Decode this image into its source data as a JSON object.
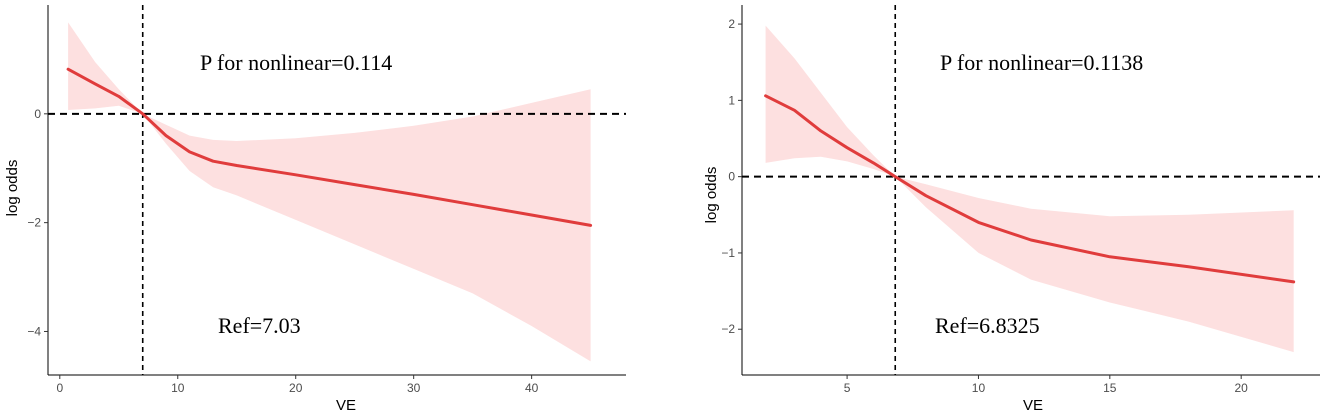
{
  "colors": {
    "curve": "#e03c3c",
    "band": "#fde0e0",
    "reference": "#000000"
  },
  "chart_data": [
    {
      "type": "line",
      "xlabel": "VE",
      "ylabel": "log odds",
      "xlim": [
        -1,
        48
      ],
      "ylim": [
        -4.8,
        2.0
      ],
      "x_ticks": [
        0,
        10,
        20,
        30,
        40
      ],
      "y_ticks": [
        0,
        -2,
        -4
      ],
      "reference": {
        "x": 7.03,
        "y": 0
      },
      "annotations": {
        "p_text": "P for nonlinear=0.114",
        "ref_text": "Ref=7.03"
      },
      "series": [
        {
          "x": [
            0.7,
            3,
            5,
            7.03,
            9,
            11,
            13,
            15,
            20,
            25,
            30,
            35,
            40,
            45
          ],
          "y": [
            0.82,
            0.55,
            0.32,
            0.0,
            -0.4,
            -0.7,
            -0.87,
            -0.95,
            -1.12,
            -1.3,
            -1.48,
            -1.67,
            -1.86,
            -2.05
          ],
          "lower": [
            0.07,
            0.1,
            0.15,
            0.0,
            -0.55,
            -1.05,
            -1.35,
            -1.5,
            -1.95,
            -2.4,
            -2.85,
            -3.3,
            -3.9,
            -4.55
          ],
          "upper": [
            1.68,
            0.95,
            0.45,
            0.0,
            -0.2,
            -0.4,
            -0.48,
            -0.5,
            -0.45,
            -0.35,
            -0.22,
            -0.05,
            0.2,
            0.45
          ]
        }
      ],
      "grid": false
    },
    {
      "type": "line",
      "xlabel": "VE",
      "ylabel": "log odds",
      "xlim": [
        1,
        23
      ],
      "ylim": [
        -2.6,
        2.25
      ],
      "x_ticks": [
        5,
        10,
        15,
        20
      ],
      "y_ticks": [
        2,
        1,
        0,
        -1,
        -2
      ],
      "reference": {
        "x": 6.8325,
        "y": 0
      },
      "annotations": {
        "p_text": "P for nonlinear=0.1138",
        "ref_text": "Ref=6.8325"
      },
      "series": [
        {
          "x": [
            1.9,
            3,
            4,
            5,
            6,
            6.8325,
            8,
            10,
            12,
            15,
            18,
            22
          ],
          "y": [
            1.06,
            0.87,
            0.6,
            0.38,
            0.18,
            0.0,
            -0.25,
            -0.6,
            -0.83,
            -1.05,
            -1.18,
            -1.38
          ],
          "lower": [
            0.18,
            0.24,
            0.26,
            0.2,
            0.1,
            0.0,
            -0.4,
            -1.0,
            -1.35,
            -1.65,
            -1.9,
            -2.3
          ],
          "upper": [
            1.98,
            1.55,
            1.1,
            0.65,
            0.28,
            0.0,
            -0.1,
            -0.28,
            -0.42,
            -0.52,
            -0.5,
            -0.44
          ]
        }
      ],
      "grid": false
    }
  ]
}
